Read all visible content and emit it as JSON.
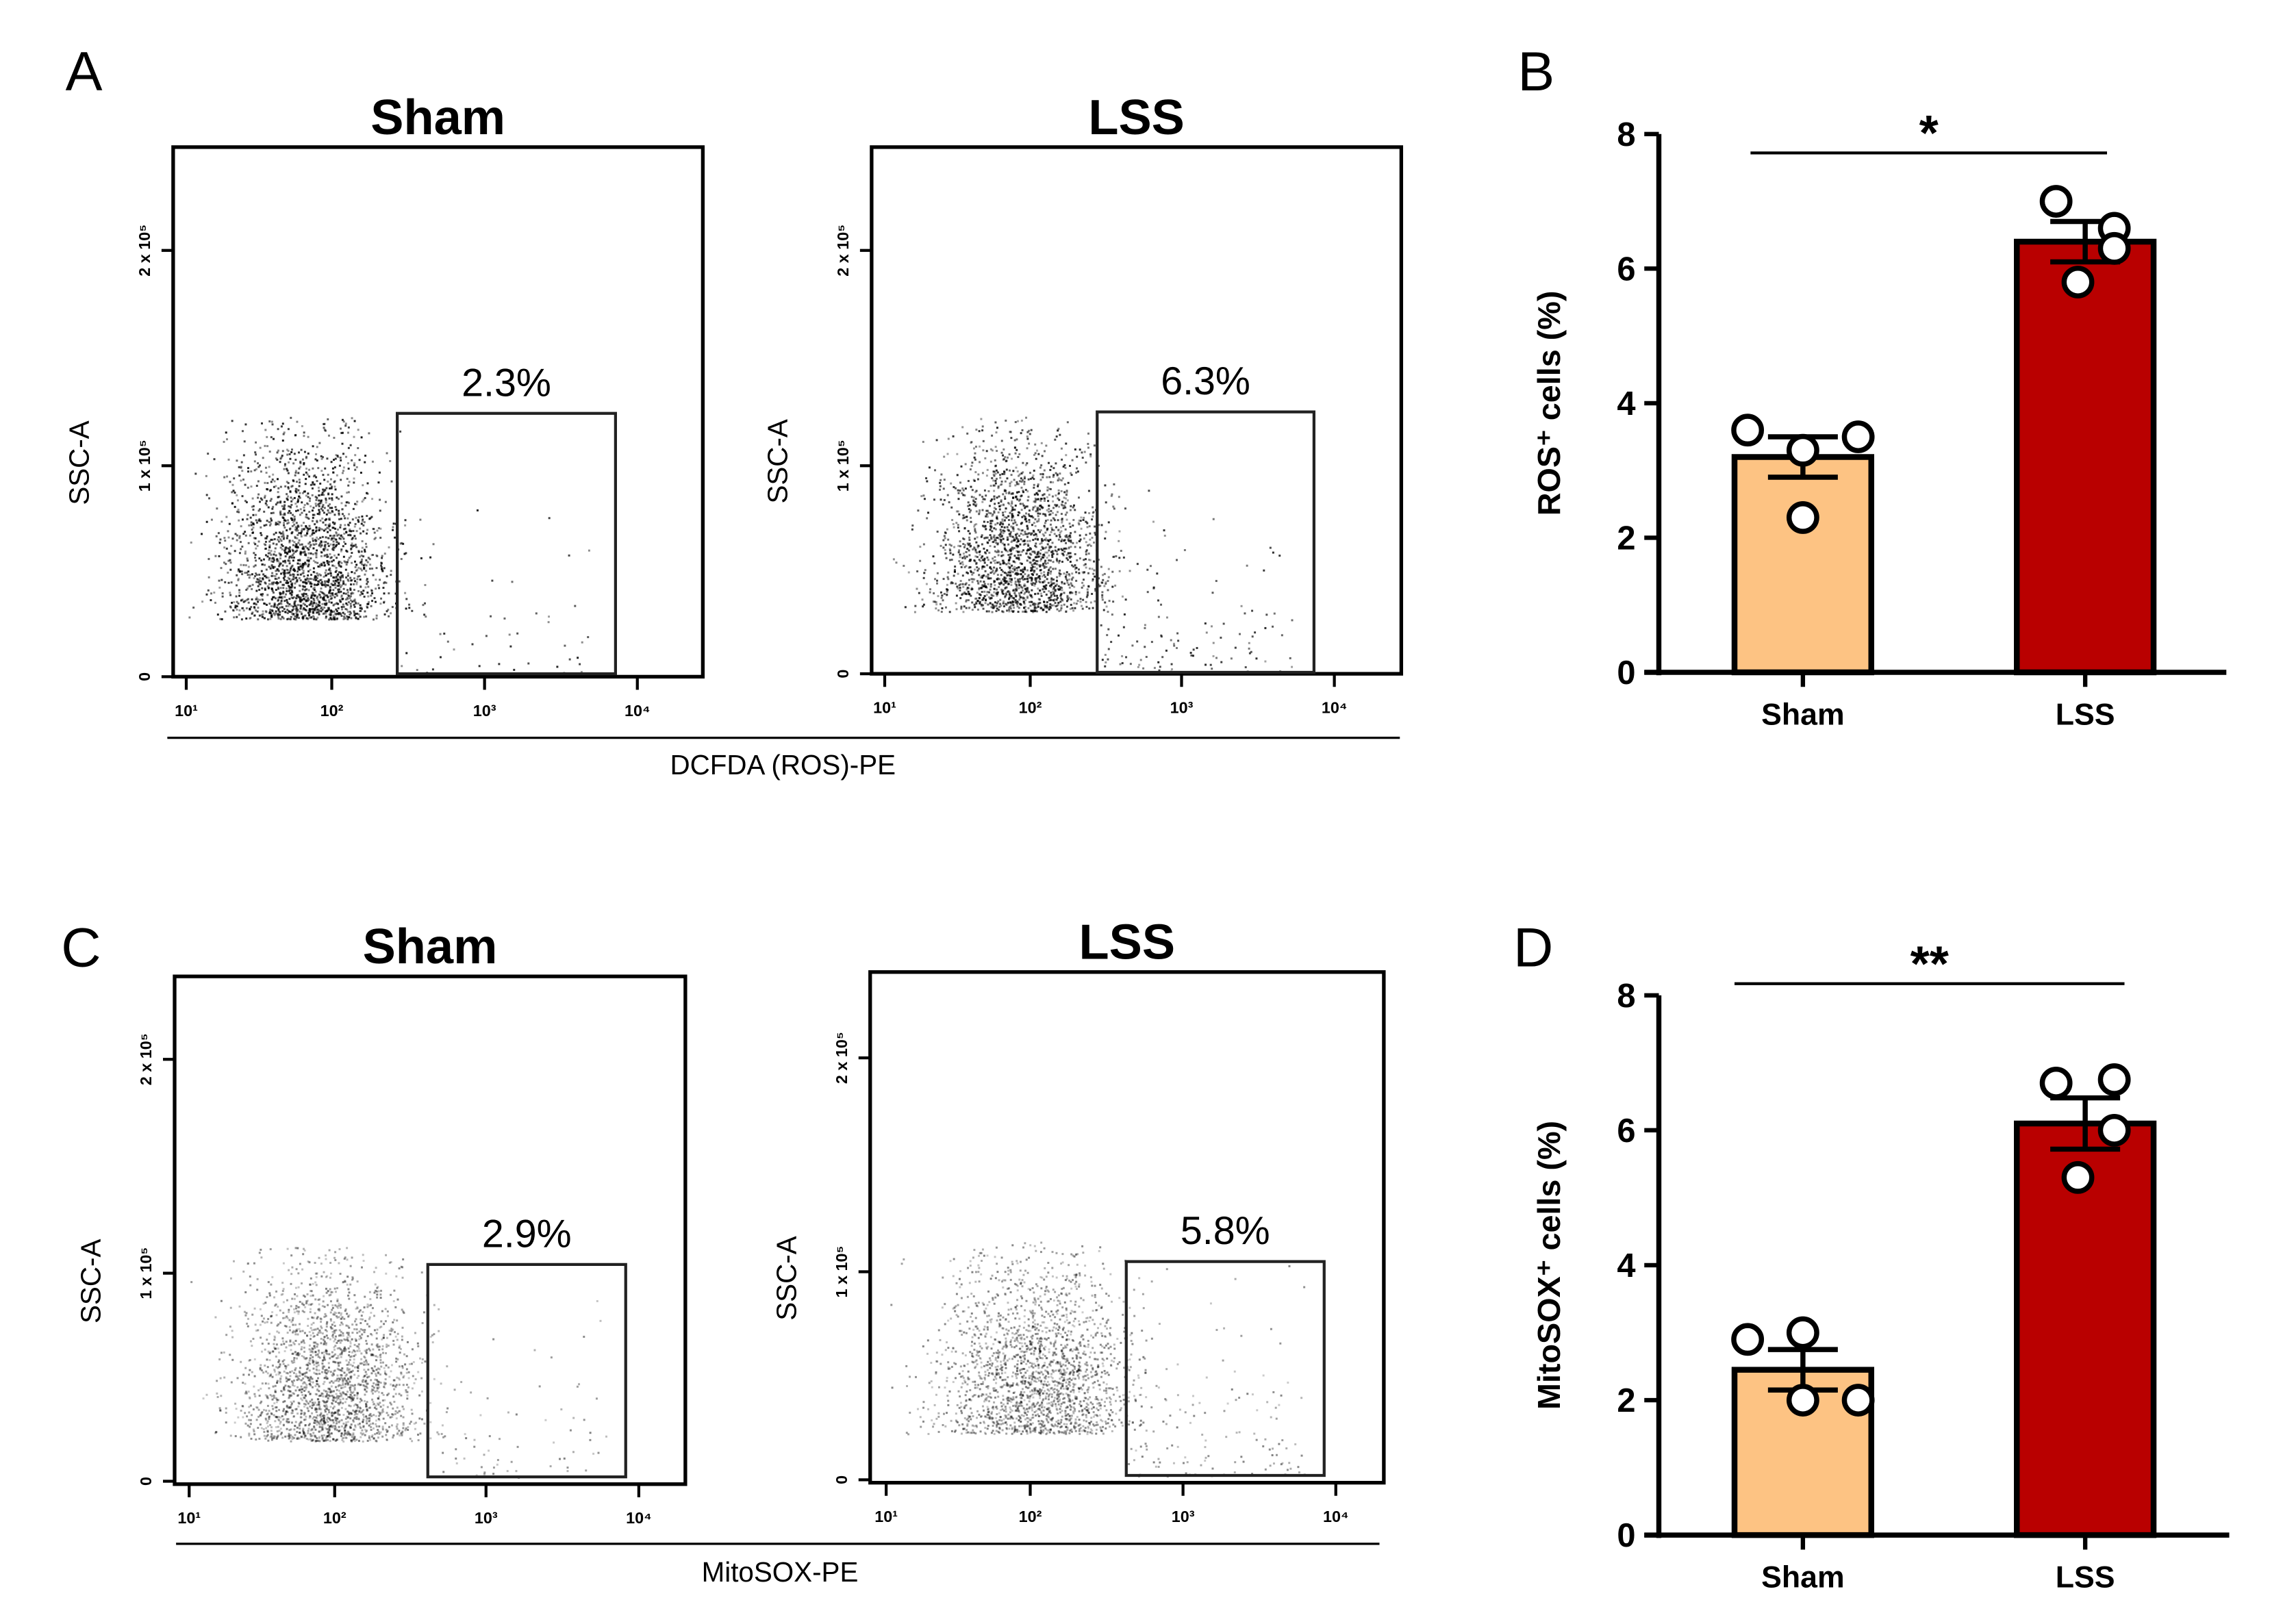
{
  "panel_labels": {
    "a": "A",
    "b": "B",
    "c": "C",
    "d": "D"
  },
  "colors": {
    "sham": "#fdc383",
    "lss": "#b90000",
    "ink": "#000000"
  },
  "chart_data": [
    {
      "type": "scatter",
      "id": "a_sham",
      "title": "Sham",
      "ylabel": "SSC-A",
      "yticks": [
        "0",
        "1 x 10⁵",
        "2 x 10⁵"
      ],
      "xticks": [
        "10¹",
        "10²",
        "10³",
        "10⁴"
      ],
      "gate_label": "2.3%",
      "gate_percent": 2.3,
      "xscale": "log"
    },
    {
      "type": "scatter",
      "id": "a_lss",
      "title": "LSS",
      "ylabel": "SSC-A",
      "yticks": [
        "0",
        "1 x 10⁵",
        "2 x 10⁵"
      ],
      "xticks": [
        "10¹",
        "10²",
        "10³",
        "10⁴"
      ],
      "gate_label": "6.3%",
      "gate_percent": 6.3,
      "xscale": "log"
    },
    {
      "type": "scatter",
      "id": "c_sham",
      "title": "Sham",
      "ylabel": "SSC-A",
      "yticks": [
        "0",
        "1 x 10⁵",
        "2 x 10⁵"
      ],
      "xticks": [
        "10¹",
        "10²",
        "10³",
        "10⁴"
      ],
      "gate_label": "2.9%",
      "gate_percent": 2.9,
      "xscale": "log"
    },
    {
      "type": "scatter",
      "id": "c_lss",
      "title": "LSS",
      "ylabel": "SSC-A",
      "yticks": [
        "0",
        "1 x 10⁵",
        "2 x 10⁵"
      ],
      "xticks": [
        "10¹",
        "10²",
        "10³",
        "10⁴"
      ],
      "gate_label": "5.8%",
      "gate_percent": 5.8,
      "xscale": "log"
    },
    {
      "type": "bar",
      "id": "b",
      "categories": [
        "Sham",
        "LSS"
      ],
      "values": [
        3.2,
        6.4
      ],
      "sem": [
        0.3,
        0.3
      ],
      "points": [
        [
          3.6,
          3.3,
          3.5,
          2.3
        ],
        [
          7.0,
          6.6,
          6.3,
          5.8
        ]
      ],
      "ylabel": "ROS⁺ cells (%)",
      "ylim": [
        0,
        8
      ],
      "yticks": [
        "0",
        "2",
        "4",
        "6",
        "8"
      ],
      "significance": "*"
    },
    {
      "type": "bar",
      "id": "d",
      "categories": [
        "Sham",
        "LSS"
      ],
      "values": [
        2.45,
        6.1
      ],
      "sem": [
        0.3,
        0.38
      ],
      "points": [
        [
          2.9,
          3.0,
          2.0,
          2.0
        ],
        [
          6.7,
          6.75,
          6.0,
          5.3
        ]
      ],
      "ylabel": "MitoSOX⁺ cells (%)",
      "ylim": [
        0,
        8
      ],
      "yticks": [
        "0",
        "2",
        "4",
        "6",
        "8"
      ],
      "significance": "**"
    }
  ],
  "xaxis_titles": {
    "a": "DCFDA (ROS)-PE",
    "c": "MitoSOX-PE"
  }
}
